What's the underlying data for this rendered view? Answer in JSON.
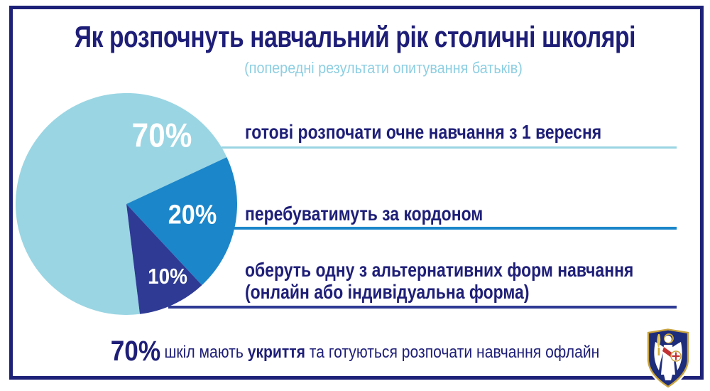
{
  "header": {
    "title": "Як розпочнуть навчальний рік столичні школярі",
    "subtitle": "(попередні результати опитування батьків)"
  },
  "chart_data": {
    "type": "pie",
    "title": "Як розпочнуть навчальний рік столичні школярі",
    "subtitle": "(попередні результати опитування батьків)",
    "categories": [
      "готові розпочати очне навчання з 1 вересня",
      "перебуватимуть за кордоном",
      "оберуть одну з альтернативних форм навчання (онлайн або індивідуальна форма)"
    ],
    "values": [
      70,
      20,
      10
    ],
    "unit": "%",
    "slice_labels": [
      "70%",
      "20%",
      "10%"
    ],
    "colors": [
      "#9ad5e3",
      "#1b86ca",
      "#2e3a94"
    ],
    "start_angle_deg": 83,
    "legend_position": "right",
    "grid": false
  },
  "legend": {
    "items": [
      {
        "pct": "70%",
        "text": "готові розпочати очне навчання з 1 вересня",
        "line_color": "#9ad5e3"
      },
      {
        "pct": "20%",
        "text": "перебуватимуть за кордоном",
        "line_color": "#1b86ca"
      },
      {
        "pct": "10%",
        "text_line1": "оберуть одну з альтернативних форм навчання",
        "text_line2": "(онлайн або індивідуальна форма)",
        "line_color": "#2e3a94"
      }
    ]
  },
  "footer": {
    "pct": "70%",
    "part1": "шкіл мають ",
    "part2_bold": "укриття",
    "part3": " та готуються розпочати навчання офлайн"
  },
  "icons": {
    "emblem": "kyiv-coat-of-arms-icon"
  },
  "theme": {
    "text_navy": "#1e1e78",
    "frame_navy": "#1e2178",
    "subtitle_blue": "#8ecfe2",
    "slice_light_blue": "#9ad5e3",
    "slice_mid_blue": "#1b86ca",
    "slice_dark_navy": "#2e3a94",
    "background": "#ffffff"
  }
}
